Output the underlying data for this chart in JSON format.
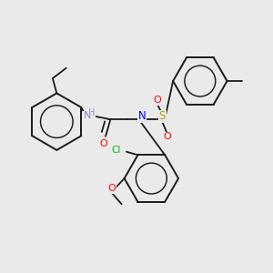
{
  "background_color": "#eaeaea",
  "bond_color": "#1a1a1a",
  "atoms": {
    "N": "#0000ff",
    "NH": "#8888cc",
    "O": "#ff0000",
    "Cl": "#00bb00",
    "S": "#aaaa00",
    "C": "#1a1a1a"
  },
  "figsize": [
    3.0,
    3.0
  ],
  "dpi": 100,
  "xlim": [
    0,
    10
  ],
  "ylim": [
    0,
    10
  ]
}
